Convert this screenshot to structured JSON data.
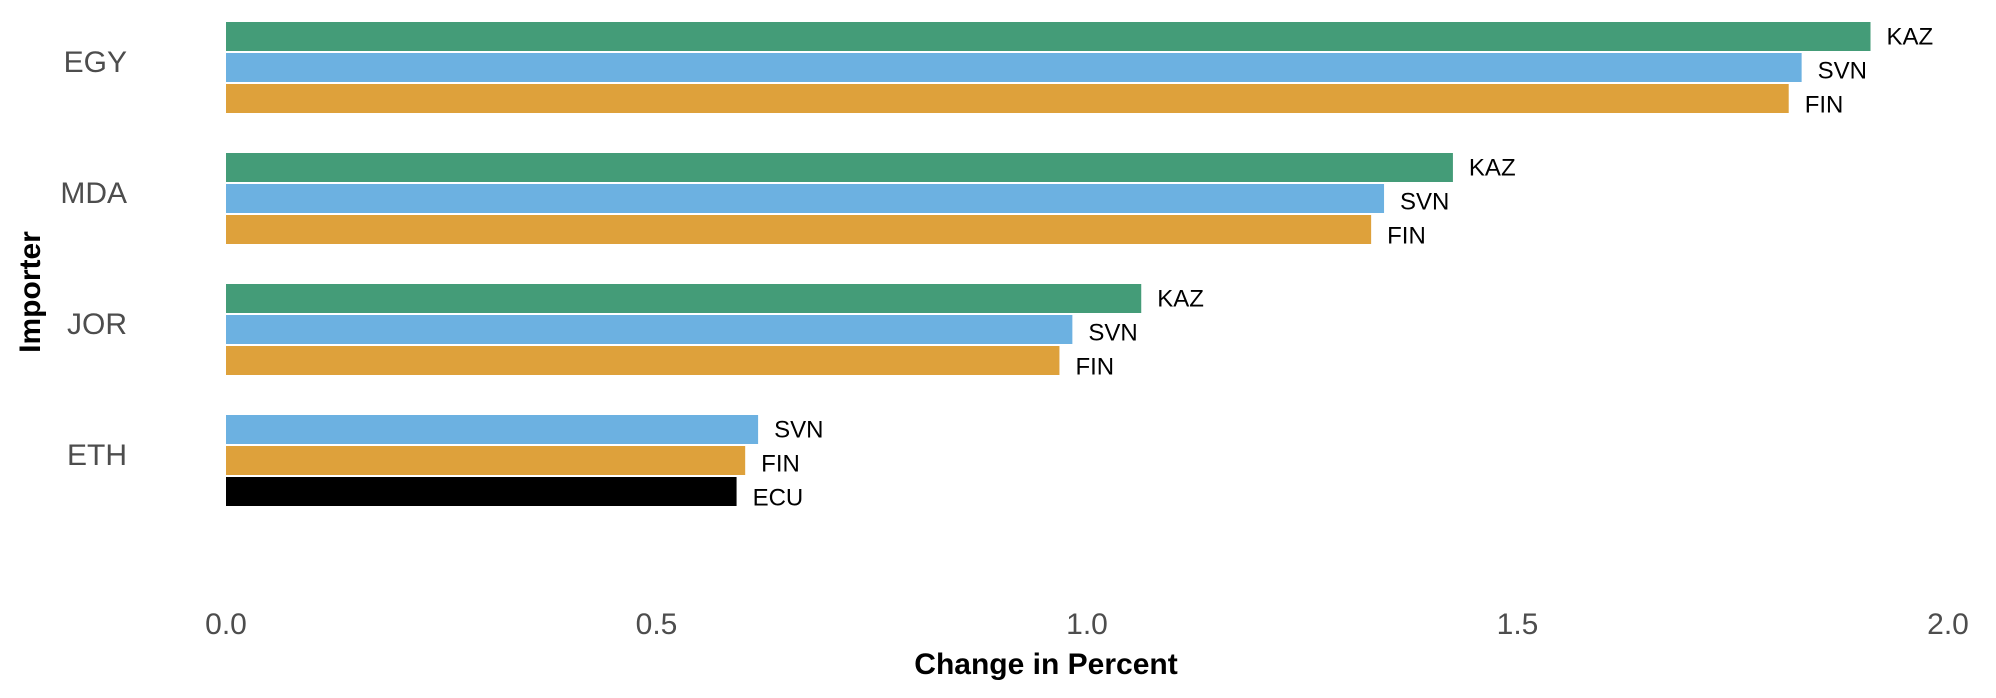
{
  "chart_data": {
    "type": "bar",
    "orientation": "horizontal",
    "xlabel": "Change in Percent",
    "ylabel": "Importer",
    "xlim": [
      0,
      2.0
    ],
    "xticks": [
      "0.0",
      "0.5",
      "1.0",
      "1.5",
      "2.0"
    ],
    "grid": false,
    "legend": "none",
    "colors": {
      "KAZ": "#449c78",
      "SVN": "#6cb1e1",
      "FIN": "#dea13b",
      "ECU": "#000000"
    },
    "groups": [
      {
        "importer": "EGY",
        "bars": [
          {
            "exporter": "KAZ",
            "value": 1.91
          },
          {
            "exporter": "SVN",
            "value": 1.83
          },
          {
            "exporter": "FIN",
            "value": 1.815
          }
        ]
      },
      {
        "importer": "MDA",
        "bars": [
          {
            "exporter": "KAZ",
            "value": 1.425
          },
          {
            "exporter": "SVN",
            "value": 1.345
          },
          {
            "exporter": "FIN",
            "value": 1.33
          }
        ]
      },
      {
        "importer": "JOR",
        "bars": [
          {
            "exporter": "KAZ",
            "value": 1.063
          },
          {
            "exporter": "SVN",
            "value": 0.983
          },
          {
            "exporter": "FIN",
            "value": 0.968
          }
        ]
      },
      {
        "importer": "ETH",
        "bars": [
          {
            "exporter": "SVN",
            "value": 0.618
          },
          {
            "exporter": "FIN",
            "value": 0.603
          },
          {
            "exporter": "ECU",
            "value": 0.593
          }
        ]
      }
    ]
  }
}
